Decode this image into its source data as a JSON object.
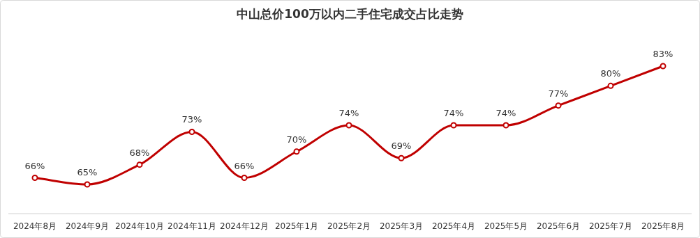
{
  "chart_data": {
    "type": "line",
    "title": "中山总价100万以内二手住宅成交占比走势",
    "categories": [
      "2024年8月",
      "2024年9月",
      "2024年10月",
      "2024年11月",
      "2024年12月",
      "2025年1月",
      "2025年2月",
      "2025年3月",
      "2025年4月",
      "2025年5月",
      "2025年6月",
      "2025年7月",
      "2025年8月"
    ],
    "series": [
      {
        "color": "#c00000",
        "values": [
          66,
          65,
          68,
          73,
          66,
          70,
          74,
          69,
          74,
          74,
          77,
          80,
          83
        ],
        "value_labels": [
          "66%",
          "65%",
          "68%",
          "73%",
          "66%",
          "70%",
          "74%",
          "69%",
          "74%",
          "74%",
          "77%",
          "80%",
          "83%"
        ]
      }
    ],
    "marker": "circle"
  }
}
